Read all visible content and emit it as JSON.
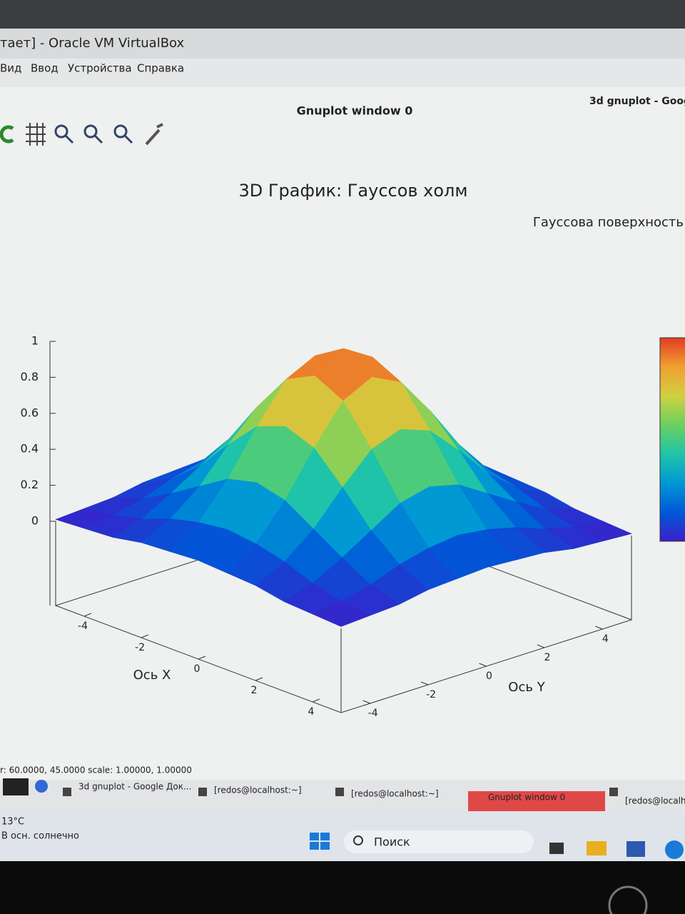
{
  "window": {
    "title": "тает] - Oracle VM VirtualBox",
    "menu": [
      "Вид",
      "Ввод",
      "Устройства",
      "Справка"
    ]
  },
  "gnuplot": {
    "title": "Gnuplot window 0",
    "other_tab": "3d gnuplot - Goog",
    "status": "r: 60.0000, 45.0000   scale: 1.00000, 1.00000"
  },
  "chart_data": {
    "type": "surface3d",
    "title": "3D График: Гауссов холм",
    "legend": "Гауссова поверхность",
    "xlabel": "Ось X",
    "ylabel": "Ось Y",
    "x": [
      -5,
      -4,
      -3,
      -2,
      -1,
      0,
      1,
      2,
      3,
      4,
      5
    ],
    "y": [
      -5,
      -4,
      -3,
      -2,
      -1,
      0,
      1,
      2,
      3,
      4,
      5
    ],
    "z": [
      [
        0.01,
        0.02,
        0.03,
        0.06,
        0.07,
        0.08,
        0.07,
        0.06,
        0.03,
        0.02,
        0.01
      ],
      [
        0.02,
        0.04,
        0.08,
        0.14,
        0.18,
        0.2,
        0.18,
        0.14,
        0.08,
        0.04,
        0.02
      ],
      [
        0.03,
        0.08,
        0.17,
        0.27,
        0.37,
        0.41,
        0.37,
        0.27,
        0.17,
        0.08,
        0.03
      ],
      [
        0.06,
        0.14,
        0.27,
        0.45,
        0.61,
        0.67,
        0.61,
        0.45,
        0.27,
        0.14,
        0.06
      ],
      [
        0.07,
        0.18,
        0.37,
        0.61,
        0.82,
        0.9,
        0.82,
        0.61,
        0.37,
        0.18,
        0.07
      ],
      [
        0.08,
        0.2,
        0.41,
        0.67,
        0.9,
        1,
        0.9,
        0.67,
        0.41,
        0.2,
        0.08
      ],
      [
        0.07,
        0.18,
        0.37,
        0.61,
        0.82,
        0.9,
        0.82,
        0.61,
        0.37,
        0.18,
        0.07
      ],
      [
        0.06,
        0.14,
        0.27,
        0.45,
        0.61,
        0.67,
        0.61,
        0.45,
        0.27,
        0.14,
        0.06
      ],
      [
        0.03,
        0.08,
        0.17,
        0.27,
        0.37,
        0.41,
        0.37,
        0.27,
        0.17,
        0.08,
        0.03
      ],
      [
        0.02,
        0.04,
        0.08,
        0.14,
        0.18,
        0.2,
        0.18,
        0.14,
        0.08,
        0.04,
        0.02
      ],
      [
        0.01,
        0.02,
        0.03,
        0.06,
        0.07,
        0.08,
        0.07,
        0.06,
        0.03,
        0.02,
        0.01
      ]
    ],
    "xlim": [
      -5,
      5
    ],
    "ylim": [
      -5,
      5
    ],
    "zlim": [
      0,
      1
    ],
    "xticks": [
      -4,
      -2,
      0,
      2,
      4
    ],
    "yticks": [
      -4,
      -2,
      0,
      2,
      4
    ],
    "zticks": [
      0,
      0.2,
      0.4,
      0.6,
      0.8,
      1
    ],
    "palette": [
      "#3b1fc9",
      "#0058d8",
      "#0098d4",
      "#20c4a8",
      "#6ad060",
      "#d0d040",
      "#f0a030",
      "#e03c22"
    ]
  },
  "taskbar": {
    "items": [
      "3d gnuplot - Google Док...",
      "[redos@localhost:~]",
      "[redos@localhost:~]",
      "Gnuplot window 0",
      "[redos@localh"
    ]
  },
  "windows_taskbar": {
    "temperature": "13°C",
    "weather": "В осн. солнечно",
    "search": "Поиск"
  }
}
